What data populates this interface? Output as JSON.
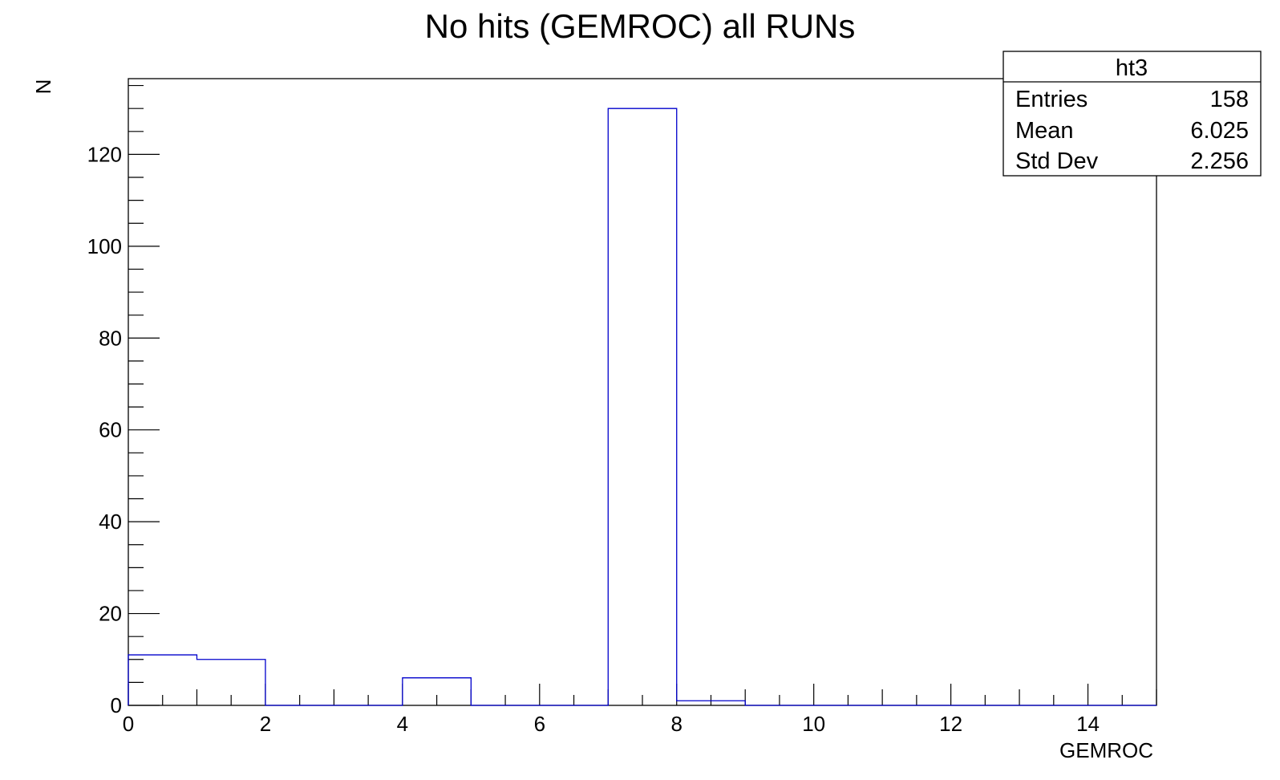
{
  "chart_data": {
    "type": "histogram",
    "title": "No hits (GEMROC) all RUNs",
    "xlabel": "GEMROC",
    "ylabel": "N",
    "xlim": [
      0,
      15
    ],
    "ylim": [
      0,
      136.5
    ],
    "x_ticks": [
      "0",
      "2",
      "4",
      "6",
      "8",
      "10",
      "12",
      "14"
    ],
    "y_ticks": [
      "0",
      "20",
      "40",
      "60",
      "80",
      "100",
      "120"
    ],
    "bin_edges": [
      0,
      1,
      2,
      3,
      4,
      5,
      6,
      7,
      8,
      9,
      10,
      11,
      12,
      13,
      14,
      15
    ],
    "values": [
      11,
      10,
      0,
      0,
      6,
      0,
      0,
      130,
      1,
      0,
      0,
      0,
      0,
      0,
      0
    ],
    "line_color": "#0000cc",
    "grid": false,
    "legend": "none",
    "stats_box": {
      "name": "ht3",
      "position": "top-right",
      "rows": [
        {
          "label": "Entries",
          "value": "158"
        },
        {
          "label": "Mean",
          "value": "6.025"
        },
        {
          "label": "Std Dev",
          "value": "2.256"
        }
      ]
    }
  }
}
